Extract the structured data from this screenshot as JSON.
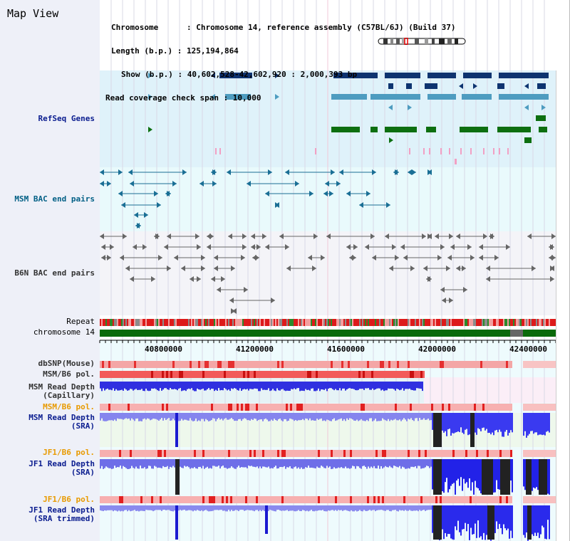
{
  "header": {
    "map_title": "Map View",
    "info_lines": [
      "Chromosome      : Chromosome 14, reference assembly (C57BL/6J) (Build 37)",
      "Length (b.p.) : 125,194,864",
      "Show (b.p.) : 40,602,528-42,602,920 : 2,000,393 bp",
      "Read coverage check span : 10,000"
    ]
  },
  "tracks": {
    "refseq": "RefSeq Genes",
    "msm_bac": "MSM BAC end pairs",
    "b6n_bac": "B6N BAC end pairs",
    "repeat": "Repeat",
    "chromosome": "chromosome 14",
    "dbsnp": "dbSNP(Mouse)",
    "msm_pol_1": "MSM/B6 pol.",
    "msm_depth_cap_1": "MSM Read Depth",
    "msm_depth_cap_2": "(Capillary)",
    "msm_pol_2": "MSM/B6 pol.",
    "msm_depth_sra_1": "MSM Read Depth",
    "msm_depth_sra_2": "(SRA)",
    "jf1_pol_1": "JF1/B6 pol.",
    "jf1_depth_sra_1": "JF1 Read Depth",
    "jf1_depth_sra_2": "(SRA)",
    "jf1_pol_2": "JF1/B6 pol.",
    "jf1_depth_trim_1": "JF1 Read Depth",
    "jf1_depth_trim_2": "(SRA trimmed)"
  },
  "axis": {
    "ticks": [
      "40800000",
      "41200000",
      "41600000",
      "42000000",
      "42400000"
    ]
  },
  "colors": {
    "refseq_bg": "#dff2fa",
    "msm_bac_bg": "#e9fafc",
    "b6n_bac_bg": "#f4f4f8",
    "gene_navy": "#0e3470",
    "gene_lightblue": "#4e9cc0",
    "gene_green": "#0d6f10",
    "chromosome_green": "#0a6a0a",
    "depth_blue": "#2d2df0",
    "pol_red": "#ee2222",
    "pol_orange_label": "#e89a00"
  }
}
